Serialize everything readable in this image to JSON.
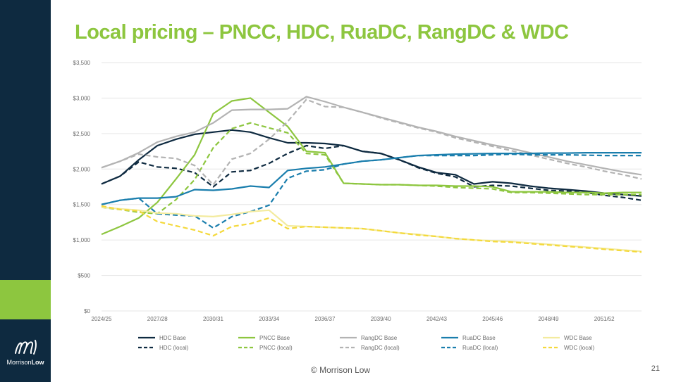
{
  "slide": {
    "title": "Local pricing – PNCC, HDC, RuaDC, RangDC & WDC",
    "footer": "© Morrison Low",
    "page_number": "21",
    "logo_text_regular": "Morrison",
    "logo_text_bold": "Low",
    "colors": {
      "sidebar": "#0e2a40",
      "accent": "#8dc63f",
      "title": "#8dc63f"
    }
  },
  "chart_data": {
    "type": "line",
    "title": "",
    "xlabel": "",
    "ylabel": "",
    "ylim": [
      0,
      3500
    ],
    "yticks": [
      0,
      500,
      1000,
      1500,
      2000,
      2500,
      3000,
      3500
    ],
    "ytick_labels": [
      "$0",
      "$500",
      "$1,000",
      "$1,500",
      "$2,000",
      "$2,500",
      "$3,000",
      "$3,500"
    ],
    "x": [
      "2024/25",
      "2025/26",
      "2026/27",
      "2027/28",
      "2028/29",
      "2029/30",
      "2030/31",
      "2031/32",
      "2032/33",
      "2033/34",
      "2034/35",
      "2035/36",
      "2036/37",
      "2037/38",
      "2038/39",
      "2039/40",
      "2040/41",
      "2041/42",
      "2042/43",
      "2043/44",
      "2044/45",
      "2045/46",
      "2046/47",
      "2047/48",
      "2048/49",
      "2049/50",
      "2050/51",
      "2051/52",
      "2052/53",
      "2053/54"
    ],
    "xtick_labels": [
      "2024/25",
      "2027/28",
      "2030/31",
      "2033/34",
      "2036/37",
      "2039/40",
      "2042/43",
      "2045/46",
      "2048/49",
      "2051/52"
    ],
    "grid": true,
    "legend_position": "bottom",
    "series": [
      {
        "name": "HDC Base",
        "color": "#0e2a40",
        "dash": false,
        "values": [
          1790,
          1900,
          2130,
          2330,
          2420,
          2490,
          2520,
          2550,
          2520,
          2440,
          2370,
          2370,
          2360,
          2330,
          2250,
          2220,
          2130,
          2030,
          1950,
          1920,
          1790,
          1820,
          1800,
          1760,
          1730,
          1710,
          1690,
          1660,
          1640,
          1620
        ]
      },
      {
        "name": "HDC (local)",
        "color": "#0e2a40",
        "dash": true,
        "values": [
          1790,
          1900,
          2100,
          2030,
          2010,
          1950,
          1750,
          1960,
          1980,
          2080,
          2220,
          2330,
          2290,
          2330,
          2250,
          2220,
          2130,
          2020,
          1940,
          1890,
          1750,
          1770,
          1760,
          1730,
          1700,
          1690,
          1670,
          1630,
          1600,
          1560
        ]
      },
      {
        "name": "PNCC Base",
        "color": "#8dc63f",
        "dash": false,
        "values": [
          1080,
          1190,
          1310,
          1530,
          1860,
          2200,
          2780,
          2960,
          3000,
          2800,
          2600,
          2250,
          2230,
          1800,
          1790,
          1780,
          1780,
          1770,
          1770,
          1760,
          1760,
          1750,
          1680,
          1680,
          1680,
          1670,
          1670,
          1660,
          1670,
          1670
        ]
      },
      {
        "name": "PNCC (local)",
        "color": "#8dc63f",
        "dash": true,
        "values": [
          1460,
          1430,
          1390,
          1370,
          1570,
          1850,
          2300,
          2570,
          2650,
          2580,
          2510,
          2220,
          2200,
          1800,
          1790,
          1780,
          1780,
          1770,
          1760,
          1740,
          1730,
          1720,
          1670,
          1670,
          1660,
          1650,
          1640,
          1640,
          1640,
          1640
        ]
      },
      {
        "name": "RangDC Base",
        "color": "#b3b3b3",
        "dash": false,
        "values": [
          2020,
          2110,
          2230,
          2380,
          2460,
          2520,
          2650,
          2830,
          2840,
          2840,
          2850,
          3020,
          2950,
          2870,
          2800,
          2730,
          2660,
          2590,
          2530,
          2460,
          2400,
          2340,
          2290,
          2230,
          2170,
          2110,
          2060,
          2010,
          1960,
          1920
        ]
      },
      {
        "name": "RangDC (local)",
        "color": "#b3b3b3",
        "dash": true,
        "values": [
          2020,
          2110,
          2210,
          2170,
          2150,
          2050,
          1780,
          2140,
          2220,
          2420,
          2670,
          2980,
          2880,
          2870,
          2800,
          2720,
          2650,
          2580,
          2520,
          2440,
          2380,
          2320,
          2260,
          2200,
          2140,
          2080,
          2030,
          1970,
          1920,
          1860
        ]
      },
      {
        "name": "RuaDC Base",
        "color": "#1a7ead",
        "dash": false,
        "values": [
          1500,
          1560,
          1590,
          1590,
          1610,
          1710,
          1700,
          1720,
          1760,
          1740,
          1980,
          2010,
          2030,
          2070,
          2110,
          2130,
          2160,
          2190,
          2200,
          2210,
          2215,
          2220,
          2220,
          2220,
          2225,
          2225,
          2230,
          2230,
          2230,
          2230
        ]
      },
      {
        "name": "RuaDC (local)",
        "color": "#1a7ead",
        "dash": true,
        "values": [
          1500,
          1560,
          1590,
          1370,
          1350,
          1340,
          1170,
          1330,
          1400,
          1490,
          1870,
          1970,
          1990,
          2070,
          2110,
          2130,
          2160,
          2190,
          2190,
          2190,
          2190,
          2200,
          2210,
          2200,
          2200,
          2200,
          2195,
          2190,
          2190,
          2190
        ]
      },
      {
        "name": "WDC Base",
        "color": "#f3eb9e",
        "dash": false,
        "values": [
          1460,
          1440,
          1420,
          1380,
          1370,
          1340,
          1330,
          1360,
          1400,
          1420,
          1200,
          1190,
          1180,
          1170,
          1160,
          1130,
          1100,
          1080,
          1050,
          1020,
          1000,
          990,
          980,
          960,
          940,
          920,
          900,
          880,
          860,
          840
        ]
      },
      {
        "name": "WDC (local)",
        "color": "#f4d93c",
        "dash": true,
        "values": [
          1480,
          1430,
          1410,
          1260,
          1200,
          1140,
          1060,
          1190,
          1230,
          1310,
          1160,
          1190,
          1180,
          1170,
          1160,
          1130,
          1100,
          1070,
          1050,
          1020,
          1000,
          980,
          970,
          950,
          930,
          910,
          890,
          870,
          850,
          830
        ]
      }
    ]
  }
}
